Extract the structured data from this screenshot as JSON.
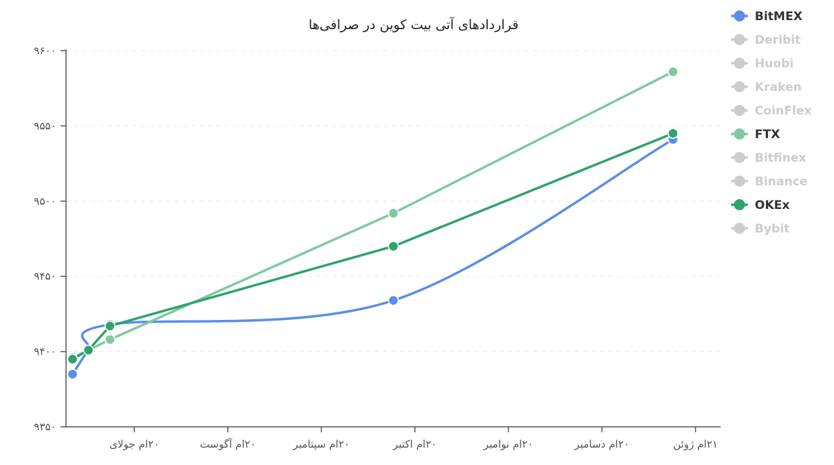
{
  "chart_data": {
    "type": "line",
    "title": "قراردادهای آتی بیت کوین در صرافی‌ها",
    "y_ticks": [
      "۹۳۵۰",
      "۹۴۰۰",
      "۹۴۵۰",
      "۹۵۰۰",
      "۹۵۵۰",
      "۹۶۰۰"
    ],
    "y_tick_values": [
      9350,
      9400,
      9450,
      9500,
      9550,
      9600
    ],
    "ylim": [
      9350,
      9600
    ],
    "x_ticks": [
      "۲۰ام جولای",
      "۲۰ام آگوست",
      "۲۰ام سپتامبر",
      "۲۰ام اکتبر",
      "۲۰ام نوامبر",
      "۲۰ام دسامبر",
      "۲۱ام ژوئن"
    ],
    "x_tick_values": [
      0.73,
      1.73,
      2.73,
      3.73,
      4.73,
      5.73,
      6.73
    ],
    "xlim": [
      0,
      7
    ],
    "grid": true,
    "legend_position": "right",
    "series": [
      {
        "name": "BitMEX",
        "color": "#5b8ee6",
        "visible": true,
        "smooth": true,
        "points": [
          [
            0.07,
            9385
          ],
          [
            0.24,
            9401
          ],
          [
            0.47,
            9418
          ],
          [
            3.5,
            9434
          ],
          [
            6.49,
            9541
          ]
        ]
      },
      {
        "name": "Deribit",
        "color": "#cccccc",
        "visible": false,
        "points": []
      },
      {
        "name": "Huobi",
        "color": "#cccccc",
        "visible": false,
        "points": []
      },
      {
        "name": "Kraken",
        "color": "#cccccc",
        "visible": false,
        "points": []
      },
      {
        "name": "CoinFlex",
        "color": "#cccccc",
        "visible": false,
        "points": []
      },
      {
        "name": "FTX",
        "color": "#80c9a0",
        "visible": true,
        "smooth": false,
        "points": [
          [
            0.07,
            9396
          ],
          [
            0.24,
            9401
          ],
          [
            0.47,
            9408
          ],
          [
            3.5,
            9492
          ],
          [
            6.49,
            9586
          ]
        ]
      },
      {
        "name": "Bitfinex",
        "color": "#cccccc",
        "visible": false,
        "points": []
      },
      {
        "name": "Binance",
        "color": "#cccccc",
        "visible": false,
        "points": []
      },
      {
        "name": "OKEx",
        "color": "#2ea36b",
        "visible": true,
        "smooth": false,
        "points": [
          [
            0.07,
            9395
          ],
          [
            0.24,
            9401
          ],
          [
            0.47,
            9417
          ],
          [
            3.5,
            9470
          ],
          [
            6.49,
            9545
          ]
        ]
      },
      {
        "name": "Bybit",
        "color": "#cccccc",
        "visible": false,
        "points": []
      }
    ]
  }
}
